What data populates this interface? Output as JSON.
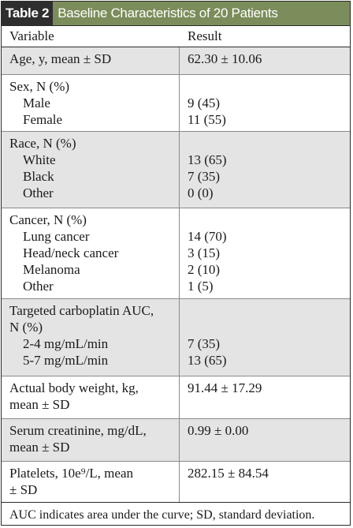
{
  "table": {
    "tag": "Table 2",
    "title": "Baseline Characteristics of 20 Patients",
    "headers": {
      "variable": "Variable",
      "result": "Result"
    },
    "rows": [
      {
        "label": "Age, y, mean ± SD",
        "value": "62.30 ± 10.06"
      },
      {
        "label": "Sex, N (%)",
        "subs": [
          {
            "label": "Male",
            "value": "9 (45)"
          },
          {
            "label": "Female",
            "value": "11 (55)"
          }
        ]
      },
      {
        "label": "Race, N (%)",
        "subs": [
          {
            "label": "White",
            "value": "13 (65)"
          },
          {
            "label": "Black",
            "value": "7 (35)"
          },
          {
            "label": "Other",
            "value": "0 (0)"
          }
        ]
      },
      {
        "label": "Cancer, N (%)",
        "subs": [
          {
            "label": "Lung cancer",
            "value": "14 (70)"
          },
          {
            "label": "Head/neck cancer",
            "value": "3 (15)"
          },
          {
            "label": "Melanoma",
            "value": "2 (10)"
          },
          {
            "label": "Other",
            "value": "1 (5)"
          }
        ]
      },
      {
        "label_line1": "Targeted carboplatin AUC,",
        "label_line2": "N (%)",
        "subs": [
          {
            "label": "2-4 mg/mL/min",
            "value": "7 (35)"
          },
          {
            "label": "5-7 mg/mL/min",
            "value": "13 (65)"
          }
        ]
      },
      {
        "label_line1": "Actual body weight, kg,",
        "label_line2": "mean ± SD",
        "value": "91.44 ± 17.29"
      },
      {
        "label_line1": "Serum creatinine, mg/dL,",
        "label_line2": "mean ± SD",
        "value": "0.99 ± 0.00"
      },
      {
        "label_line1": "Platelets, 10e⁹/L, mean",
        "label_line2": "± SD",
        "value": "282.15 ± 84.54"
      }
    ],
    "footnote": "AUC indicates area under the curve; SD, standard deviation."
  }
}
